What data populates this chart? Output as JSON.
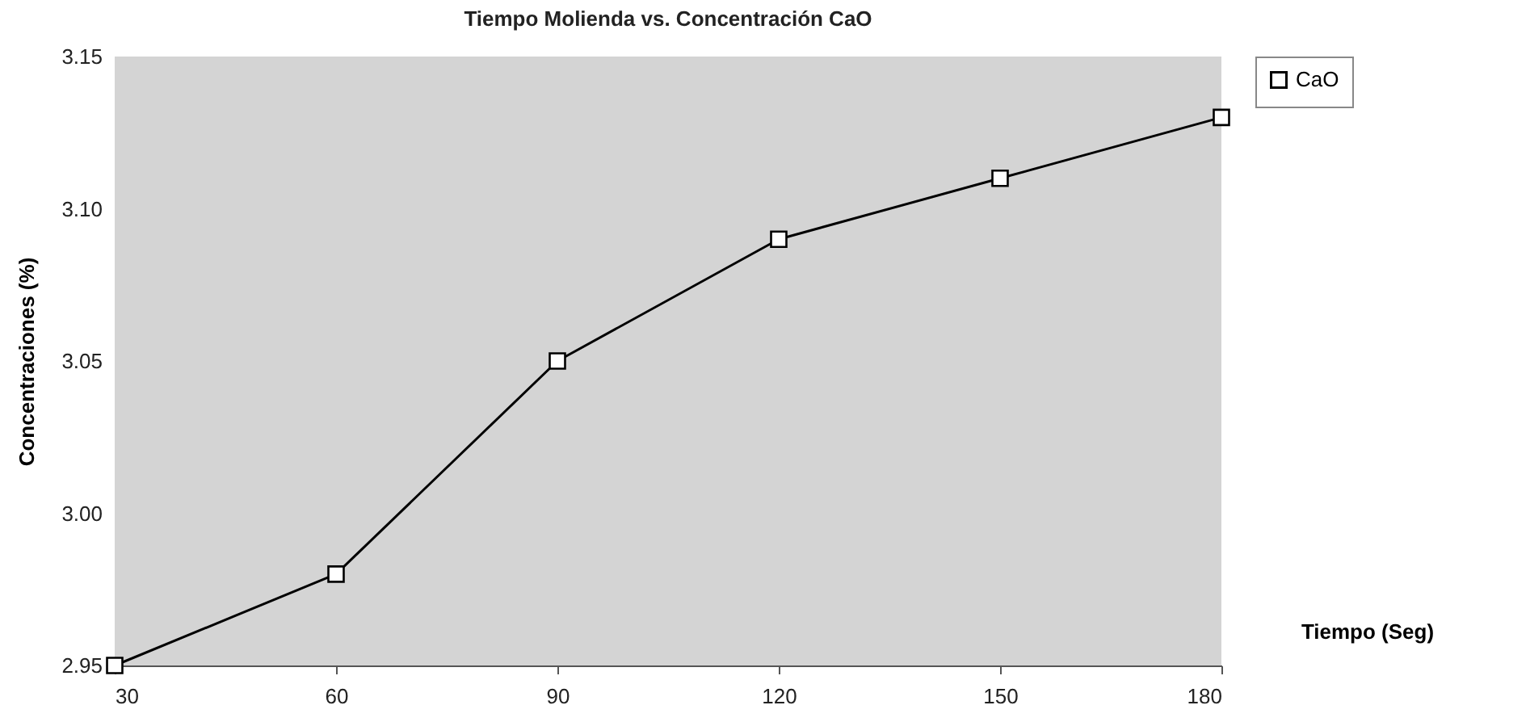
{
  "chart_data": {
    "type": "line",
    "title": "Tiempo Molienda vs. Concentración CaO",
    "xlabel": "Tiempo (Seg)",
    "ylabel": "Concentraciones (%)",
    "x": [
      30,
      60,
      90,
      120,
      150,
      180
    ],
    "series": [
      {
        "name": "CaO",
        "color": "#000000",
        "values": [
          2.95,
          2.98,
          3.05,
          3.09,
          3.11,
          3.13
        ]
      }
    ],
    "xlim": [
      30,
      180
    ],
    "xticks": [
      30,
      60,
      90,
      120,
      150,
      180
    ],
    "ylim": [
      2.95,
      3.15
    ],
    "yticks": [
      {
        "value": 2.95,
        "label": "2.95"
      },
      {
        "value": 3.0,
        "label": "3.00"
      },
      {
        "value": 3.05,
        "label": "3.05"
      },
      {
        "value": 3.1,
        "label": "3.10"
      },
      {
        "value": 3.15,
        "label": "3.15"
      }
    ],
    "grid": false,
    "legend": "right",
    "marker": "square",
    "line_style": "solid"
  }
}
